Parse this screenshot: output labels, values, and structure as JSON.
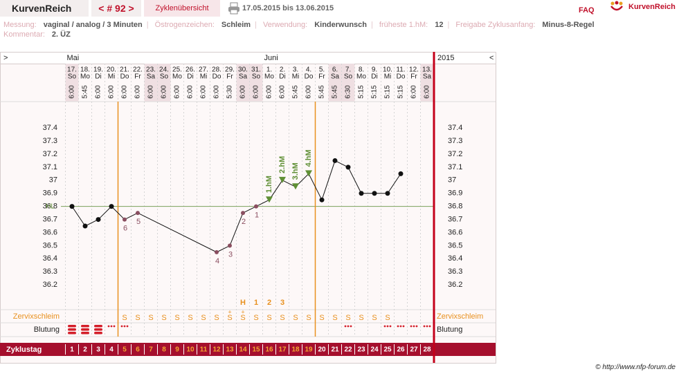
{
  "header": {
    "brand": "KurvenReich",
    "cycle_nav": "< # 92 >",
    "overview": "Zyklenübersicht",
    "date_range": "17.05.2015 bis 13.06.2015",
    "faq": "FAQ",
    "logo_text": "KurvenReich"
  },
  "info": {
    "fields": [
      {
        "label": "Messung:",
        "value": "vaginal / analog / 3 Minuten"
      },
      {
        "label": "Östrogenzeichen:",
        "value": "Schleim"
      },
      {
        "label": "Verwendung:",
        "value": "Kinderwunsch"
      },
      {
        "label": "früheste 1.hM:",
        "value": "12"
      },
      {
        "label": "Freigabe Zyklusanfang:",
        "value": "Minus-8-Regel"
      }
    ],
    "comment": {
      "label": "Kommentar:",
      "value": "2. ÜZ"
    }
  },
  "chart_data": {
    "type": "line",
    "left_toggle": ">",
    "right_toggle": "<",
    "year": "2015",
    "months": [
      "Mai",
      null,
      null,
      null,
      null,
      null,
      null,
      null,
      null,
      null,
      null,
      null,
      null,
      null,
      null,
      "Juni",
      null,
      null,
      null,
      null,
      null,
      null,
      null,
      null,
      null,
      null,
      null,
      null
    ],
    "days": [
      "17.",
      "18.",
      "19.",
      "20.",
      "21.",
      "22.",
      "23.",
      "24.",
      "25.",
      "26.",
      "27.",
      "28.",
      "29.",
      "30.",
      "31.",
      "1.",
      "2.",
      "3.",
      "4.",
      "5.",
      "6.",
      "7.",
      "8.",
      "9.",
      "10.",
      "11.",
      "12.",
      "13."
    ],
    "weekdays": [
      "So",
      "Mo",
      "Di",
      "Mi",
      "Do",
      "Fr",
      "Sa",
      "So",
      "Mo",
      "Di",
      "Mi",
      "Do",
      "Fr",
      "Sa",
      "So",
      "Mo",
      "Di",
      "Mi",
      "Do",
      "Fr",
      "Sa",
      "So",
      "Mo",
      "Di",
      "Mi",
      "Do",
      "Fr",
      "Sa"
    ],
    "weekend": [
      "Sa",
      "So"
    ],
    "times": [
      "6:00",
      "5:45",
      "6:00",
      "6:00",
      "6:00",
      "6:00",
      "6:00",
      "6:00",
      "6:00",
      "6:00",
      "6:00",
      "6:00",
      "5:30",
      "6:00",
      "6:00",
      "6:00",
      "6:00",
      "5:45",
      "6:00",
      "5:45",
      "5:45",
      "6:30",
      "5:15",
      "5:15",
      "5:15",
      "5:15",
      "6:00",
      "6:00"
    ],
    "values": [
      36.8,
      36.65,
      36.7,
      36.8,
      36.7,
      36.75,
      null,
      null,
      null,
      null,
      null,
      36.45,
      36.5,
      36.75,
      36.8,
      36.85,
      37.0,
      36.95,
      37.05,
      36.85,
      37.15,
      37.1,
      36.9,
      36.9,
      36.9,
      37.05,
      null,
      null
    ],
    "low_labels": [
      null,
      null,
      null,
      null,
      6,
      5,
      null,
      null,
      null,
      null,
      null,
      4,
      3,
      2,
      1,
      null,
      null,
      null,
      null,
      null,
      null,
      null,
      null,
      null,
      null,
      null,
      null,
      null
    ],
    "high_labels": [
      null,
      null,
      null,
      null,
      null,
      null,
      null,
      null,
      null,
      null,
      null,
      null,
      null,
      null,
      null,
      "1.hM",
      "2.hM",
      "3.hM",
      "4.hM",
      null,
      null,
      null,
      null,
      null,
      null,
      null,
      null,
      null
    ],
    "ylim": [
      36.0,
      37.6
    ],
    "yticks": [
      36.2,
      36.3,
      36.4,
      36.5,
      36.6,
      36.7,
      36.8,
      36.9,
      37,
      37.1,
      37.2,
      37.3,
      37.4
    ],
    "grid": false,
    "coverline": 36.8,
    "coverline_label": "HL",
    "phase_boundaries": [
      4,
      19
    ],
    "peak_labels": [
      null,
      null,
      null,
      null,
      null,
      null,
      null,
      null,
      null,
      null,
      null,
      null,
      null,
      "H",
      "1",
      "2",
      "3",
      null,
      null,
      null,
      null,
      null,
      null,
      null,
      null,
      null,
      null,
      null
    ],
    "mucus_label": "Zervixschleim",
    "mucus": [
      null,
      null,
      null,
      null,
      "S",
      "S",
      "S",
      "S",
      "S",
      "S",
      "S",
      "S",
      "S",
      "S",
      "S",
      "S",
      "S",
      "S",
      "S",
      "S",
      "S",
      "S",
      "S",
      "S",
      "S",
      null,
      null,
      null
    ],
    "mucus_marks": [
      null,
      null,
      null,
      null,
      null,
      null,
      null,
      null,
      null,
      null,
      null,
      null,
      "+",
      "+",
      null,
      null,
      null,
      null,
      null,
      null,
      null,
      null,
      null,
      null,
      null,
      null,
      null,
      null
    ],
    "bleeding_label": "Blutung",
    "bleeding": [
      3,
      3,
      3,
      1,
      1,
      null,
      null,
      null,
      null,
      null,
      null,
      null,
      null,
      null,
      null,
      null,
      null,
      null,
      null,
      null,
      null,
      1,
      null,
      null,
      1,
      1,
      1,
      1
    ],
    "cycle_day_label": "Zyklustag",
    "cycle_days": [
      1,
      2,
      3,
      4,
      5,
      6,
      7,
      8,
      9,
      10,
      11,
      12,
      13,
      14,
      15,
      16,
      17,
      18,
      19,
      20,
      21,
      22,
      23,
      24,
      25,
      26,
      27,
      28
    ]
  },
  "footer": {
    "copyright": "© http://www.nfp-forum.de"
  }
}
